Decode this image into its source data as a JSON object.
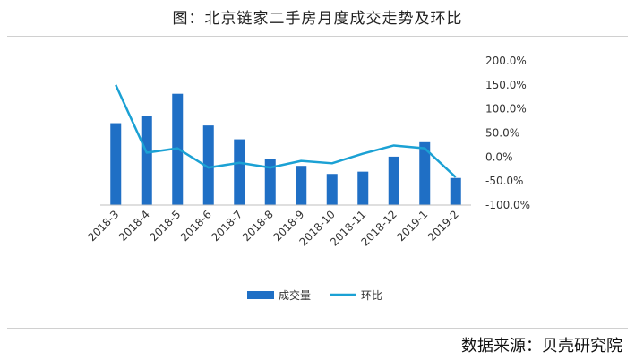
{
  "header": {
    "title": "图：北京链家二手房月度成交走势及环比"
  },
  "footer": {
    "source": "数据来源：贝壳研究院"
  },
  "chart_data": {
    "type": "bar",
    "title": "图：北京链家二手房月度成交走势及环比",
    "categories": [
      "2018-3",
      "2018-4",
      "2018-5",
      "2018-6",
      "2018-7",
      "2018-8",
      "2018-9",
      "2018-10",
      "2018-11",
      "2018-12",
      "2019-1",
      "2019-2"
    ],
    "series": [
      {
        "name": "成交量",
        "kind": "bar",
        "axis": "left",
        "values": [
          14200,
          15500,
          19300,
          13800,
          11400,
          8000,
          6800,
          5400,
          5800,
          8400,
          10900,
          4700
        ],
        "color": "#1F6FC5"
      },
      {
        "name": "环比",
        "kind": "line",
        "axis": "right",
        "values": [
          150.0,
          9.0,
          18.0,
          -22.0,
          -12.0,
          -22.0,
          -8.0,
          -13.0,
          7.0,
          24.0,
          18.0,
          -42.0
        ],
        "color": "#1BA1D4"
      }
    ],
    "y_left": {
      "range": [
        0,
        25000
      ],
      "shown": false
    },
    "y_right": {
      "range": [
        -100,
        200
      ],
      "ticks": [
        "200.0%",
        "150.0%",
        "100.0%",
        "50.0%",
        "0.0%",
        "-50.0%",
        "-100.0%"
      ],
      "tick_values": [
        200,
        150,
        100,
        50,
        0,
        -50,
        -100
      ]
    },
    "grid": false,
    "legend": {
      "placement": "bottom",
      "entries": [
        "成交量",
        "环比"
      ]
    }
  }
}
